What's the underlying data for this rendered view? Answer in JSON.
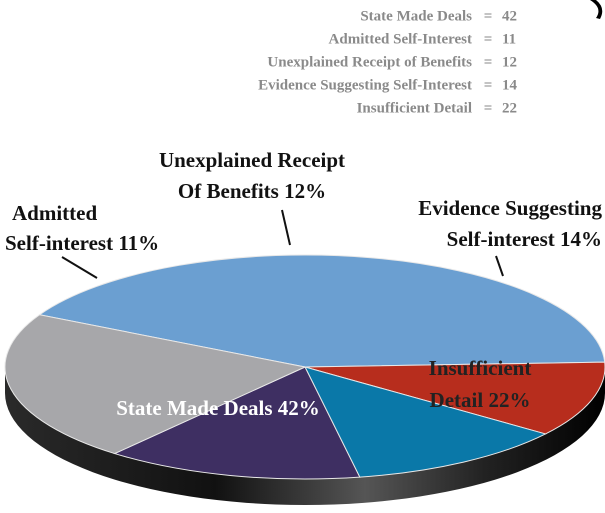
{
  "chart_data": {
    "type": "pie",
    "categories": [
      "State Made Deals",
      "Admitted Self-Interest",
      "Unexplained Receipt of Benefits",
      "Evidence Suggesting Self-Interest",
      "Insufficient Detail"
    ],
    "values": [
      42,
      11,
      12,
      14,
      22
    ],
    "colors": [
      "#6b9fd1",
      "#b72d1d",
      "#0a78a8",
      "#3e2f62",
      "#a7a7aa"
    ],
    "legend_separator": "=",
    "slice_labels": [
      [
        "State Made Deals 42%"
      ],
      [
        "Admitted",
        "Self-interest 11%"
      ],
      [
        "Unexplained Receipt",
        "Of Benefits 12%"
      ],
      [
        "Evidence Suggesting",
        "Self-interest 14%"
      ],
      [
        "Insufficient",
        "Detail 22%"
      ]
    ]
  }
}
